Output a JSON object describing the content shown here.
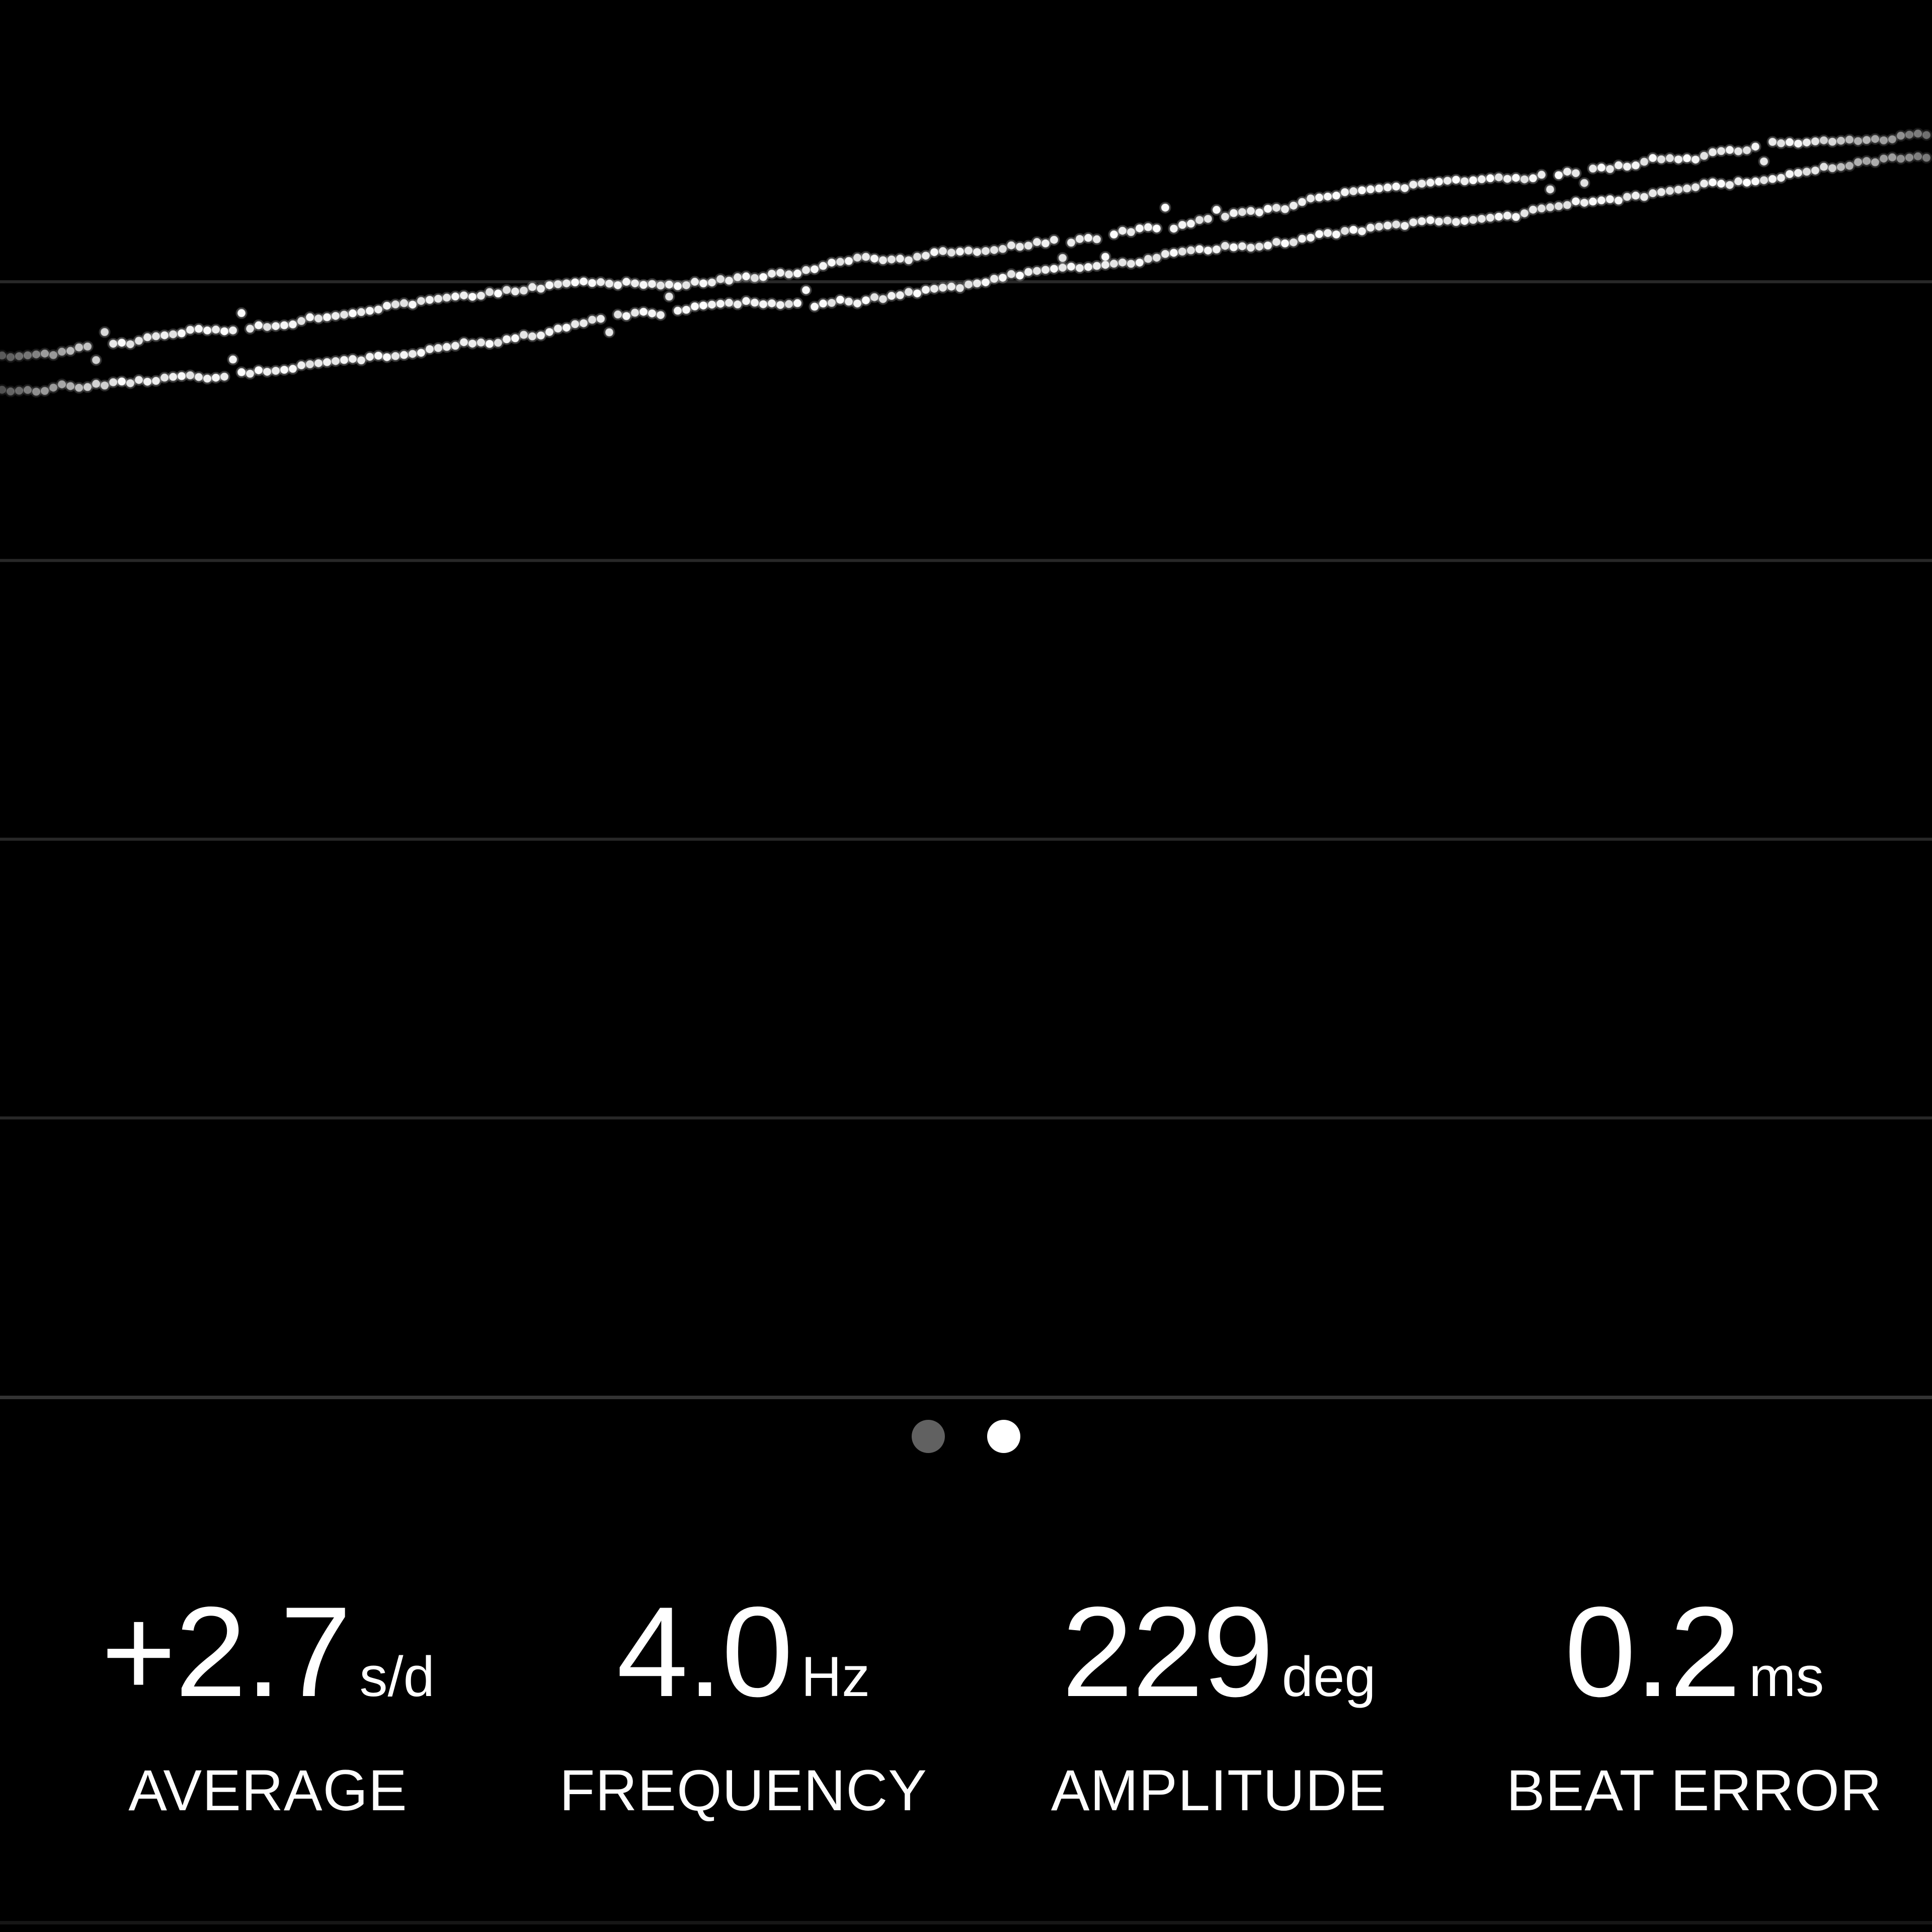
{
  "app": {
    "background": "#000000",
    "accent": "#ffffff"
  },
  "chart_data": {
    "type": "scatter",
    "title": "",
    "xlabel": "",
    "ylabel": "",
    "x_range": [
      0,
      3840
    ],
    "y_range": [
      0,
      2774
    ],
    "grid_on": true,
    "gridlines_y": [
      560,
      1114,
      1668,
      2222
    ],
    "gridline_color": "#282828",
    "gridline_thickness": 6,
    "dot_color": "#ffffff",
    "dot_radius": 8,
    "dot_halo_radius": 11.5,
    "dot_spacing_x": 17,
    "jitter": {
      "seed": 1337,
      "walk_step": 10,
      "walk_max": 16,
      "quantize": 5,
      "outlier_prob": 0.035,
      "outlier_min": 20,
      "outlier_max": 40
    },
    "left_fade": {
      "until_x": 240,
      "min_alpha": 0.3
    },
    "right_fade": {
      "from_x": 3560,
      "min_alpha": 0.4
    },
    "series": [
      {
        "name": "beat-trace-upper",
        "points": [
          [
            0,
            712
          ],
          [
            200,
            691
          ],
          [
            400,
            668
          ],
          [
            600,
            648
          ],
          [
            800,
            618
          ],
          [
            1000,
            592
          ],
          [
            1200,
            570
          ],
          [
            1400,
            548
          ],
          [
            1600,
            527
          ],
          [
            1800,
            508
          ],
          [
            2000,
            484
          ],
          [
            2200,
            458
          ],
          [
            2400,
            430
          ],
          [
            2600,
            405
          ],
          [
            2800,
            383
          ],
          [
            3000,
            360
          ],
          [
            3200,
            336
          ],
          [
            3400,
            308
          ],
          [
            3600,
            282
          ],
          [
            3840,
            252
          ]
        ]
      },
      {
        "name": "beat-trace-lower",
        "points": [
          [
            0,
            775
          ],
          [
            200,
            757
          ],
          [
            400,
            739
          ],
          [
            600,
            716
          ],
          [
            800,
            691
          ],
          [
            1000,
            665
          ],
          [
            1200,
            643
          ],
          [
            1400,
            622
          ],
          [
            1600,
            601
          ],
          [
            1800,
            586
          ],
          [
            2000,
            561
          ],
          [
            2200,
            536
          ],
          [
            2400,
            508
          ],
          [
            2600,
            483
          ],
          [
            2800,
            458
          ],
          [
            3000,
            433
          ],
          [
            3200,
            406
          ],
          [
            3400,
            378
          ],
          [
            3600,
            350
          ],
          [
            3840,
            317
          ]
        ]
      }
    ]
  },
  "divider": {
    "color": "#333333",
    "y": 2774
  },
  "pager": {
    "dots": [
      {
        "state": "inactive",
        "color": "#616161"
      },
      {
        "state": "active",
        "color": "#ffffff"
      }
    ]
  },
  "metrics": [
    {
      "value": "+2.7",
      "unit": "s/d",
      "label": "AVERAGE"
    },
    {
      "value": "4.0",
      "unit": "Hz",
      "label": "FREQUENCY"
    },
    {
      "value": "229",
      "unit": "deg",
      "label": "AMPLITUDE"
    },
    {
      "value": "0.2",
      "unit": "ms",
      "label": "BEAT ERROR"
    }
  ]
}
